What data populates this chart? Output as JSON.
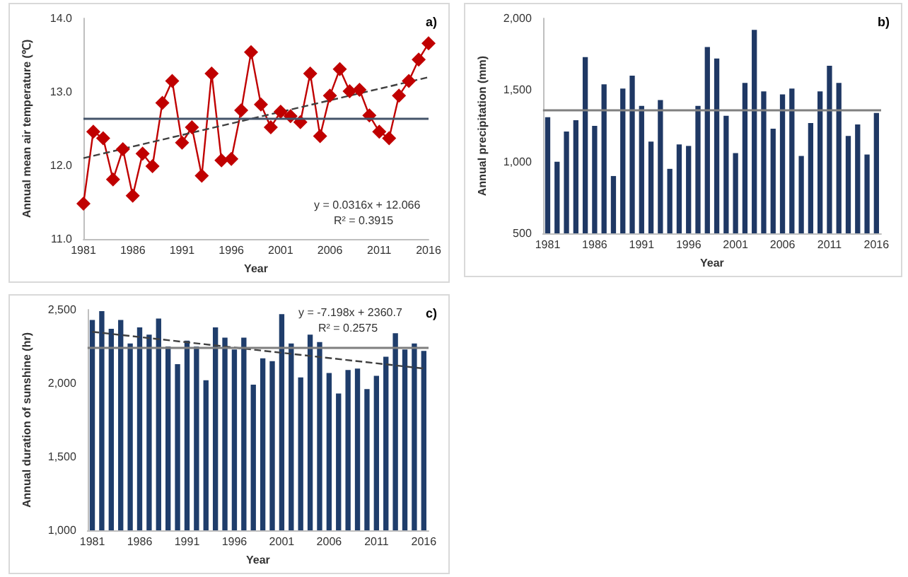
{
  "chart_data": [
    {
      "type": "line",
      "xlabel": "Year",
      "ylabel": "Annual mean air temperature (℃)",
      "annotations": [
        "a)",
        "y = 0.0316x + 12.066",
        "R² = 0.3915"
      ],
      "categories": [
        "1981",
        null,
        null,
        null,
        null,
        "1986",
        null,
        null,
        null,
        null,
        "1991",
        null,
        null,
        null,
        null,
        "1996",
        null,
        null,
        null,
        null,
        "2001",
        null,
        null,
        null,
        null,
        "2006",
        null,
        null,
        null,
        null,
        "2011",
        null,
        null,
        null,
        null,
        "2016"
      ],
      "series": [
        {
          "color": "#c00000",
          "marker": "diamond",
          "line_style": "solid",
          "values": [
            11.48,
            12.46,
            12.37,
            11.81,
            12.22,
            11.59,
            12.16,
            11.99,
            12.85,
            13.15,
            12.31,
            12.52,
            11.86,
            13.25,
            12.07,
            12.09,
            12.75,
            13.54,
            12.83,
            12.52,
            12.73,
            12.67,
            12.59,
            13.25,
            12.4,
            12.95,
            13.31,
            13.01,
            13.03,
            12.68,
            12.46,
            12.37,
            12.95,
            13.15,
            13.44,
            13.66
          ]
        },
        {
          "type": "line",
          "color": "#404040",
          "marker": "none",
          "line_style": "dashed",
          "values": [
            12.1,
            null,
            null,
            null,
            null,
            null,
            null,
            null,
            null,
            null,
            null,
            null,
            null,
            null,
            null,
            null,
            null,
            null,
            null,
            null,
            null,
            null,
            null,
            null,
            null,
            null,
            null,
            null,
            null,
            null,
            null,
            null,
            null,
            null,
            null,
            13.2
          ]
        }
      ],
      "ylim": [
        11,
        14
      ],
      "yticks": [
        {
          "value": 11,
          "label": "11.0"
        },
        {
          "value": 12,
          "label": "12.0"
        },
        {
          "value": 13,
          "label": "13.0"
        },
        {
          "value": 14,
          "label": "14.0"
        }
      ],
      "ref_lines": [
        {
          "axis": "y",
          "value": 12.63,
          "color": "#44546a",
          "line_style": "solid"
        }
      ],
      "grid": false
    },
    {
      "type": "bar",
      "xlabel": "Year",
      "ylabel": "Annual precipitation (mm)",
      "annotations": [
        "b)"
      ],
      "categories": [
        "1981",
        null,
        null,
        null,
        null,
        "1986",
        null,
        null,
        null,
        null,
        "1991",
        null,
        null,
        null,
        null,
        "1996",
        null,
        null,
        null,
        null,
        "2001",
        null,
        null,
        null,
        null,
        "2006",
        null,
        null,
        null,
        null,
        "2011",
        null,
        null,
        null,
        null,
        "2016"
      ],
      "series": [
        {
          "color": "#1f3864",
          "values": [
            1310,
            1000,
            1210,
            1290,
            1730,
            1250,
            1540,
            900,
            1510,
            1600,
            1390,
            1140,
            1430,
            950,
            1120,
            1110,
            1390,
            1800,
            1720,
            1320,
            1060,
            1550,
            1920,
            1490,
            1230,
            1470,
            1510,
            1040,
            1270,
            1490,
            1670,
            1550,
            1180,
            1260,
            1050,
            1340
          ]
        }
      ],
      "ylim": [
        500,
        2000
      ],
      "yticks": [
        {
          "value": 500,
          "label": "500"
        },
        {
          "value": 1000,
          "label": "1,000"
        },
        {
          "value": 1500,
          "label": "1,500"
        },
        {
          "value": 2000,
          "label": "2,000"
        }
      ],
      "ref_lines": [
        {
          "axis": "y",
          "value": 1360,
          "color": "#808080",
          "line_style": "solid"
        }
      ],
      "grid": false
    },
    {
      "type": "bar",
      "xlabel": "Year",
      "ylabel": "Annual duration of sunshine (hr)",
      "annotations": [
        "c)",
        "y = -7.198x + 2360.7",
        "R² = 0.2575"
      ],
      "categories": [
        "1981",
        null,
        null,
        null,
        null,
        "1986",
        null,
        null,
        null,
        null,
        "1991",
        null,
        null,
        null,
        null,
        "1996",
        null,
        null,
        null,
        null,
        "2001",
        null,
        null,
        null,
        null,
        "2006",
        null,
        null,
        null,
        null,
        "2011",
        null,
        null,
        null,
        null,
        "2016"
      ],
      "series": [
        {
          "color": "#1f3d6b",
          "values": [
            2430,
            2490,
            2370,
            2430,
            2270,
            2380,
            2330,
            2440,
            2250,
            2130,
            2290,
            2250,
            2020,
            2380,
            2310,
            2230,
            2310,
            1990,
            2170,
            2150,
            2470,
            2270,
            2040,
            2330,
            2280,
            2070,
            1930,
            2090,
            2100,
            1960,
            2050,
            2180,
            2340,
            2230,
            2270,
            2220
          ]
        },
        {
          "type": "line",
          "color": "#404040",
          "marker": "none",
          "line_style": "dashed",
          "values": [
            2350,
            null,
            null,
            null,
            null,
            null,
            null,
            null,
            null,
            null,
            null,
            null,
            null,
            null,
            null,
            null,
            null,
            null,
            null,
            null,
            null,
            null,
            null,
            null,
            null,
            null,
            null,
            null,
            null,
            null,
            null,
            null,
            null,
            null,
            null,
            2100
          ]
        }
      ],
      "ylim": [
        1000,
        2500
      ],
      "yticks": [
        {
          "value": 1000,
          "label": "1,000"
        },
        {
          "value": 1500,
          "label": "1,500"
        },
        {
          "value": 2000,
          "label": "2,000"
        },
        {
          "value": 2500,
          "label": "2,500"
        }
      ],
      "ref_lines": [
        {
          "axis": "y",
          "value": 2240,
          "color": "#7f7f7f",
          "line_style": "solid"
        }
      ],
      "grid": false
    }
  ]
}
